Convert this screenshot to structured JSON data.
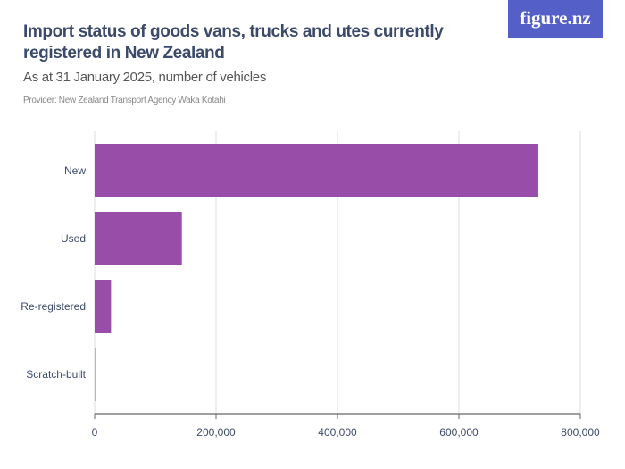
{
  "header": {
    "title": "Import status of goods vans, trucks and utes currently registered in New Zealand",
    "subtitle": "As at 31 January 2025, number of vehicles",
    "provider": "Provider: New Zealand Transport Agency Waka Kotahi",
    "logo": "figure.nz"
  },
  "chart_data": {
    "type": "bar",
    "orientation": "horizontal",
    "categories": [
      "New",
      "Used",
      "Re-registered",
      "Scratch-built"
    ],
    "values": [
      730800,
      143700,
      27000,
      500
    ],
    "xlim": [
      0,
      800000
    ],
    "xticks": [
      0,
      200000,
      400000,
      600000,
      800000
    ],
    "xtick_labels": [
      "0",
      "200,000",
      "400,000",
      "600,000",
      "800,000"
    ],
    "grid": true,
    "bar_color": "#984ea9"
  }
}
